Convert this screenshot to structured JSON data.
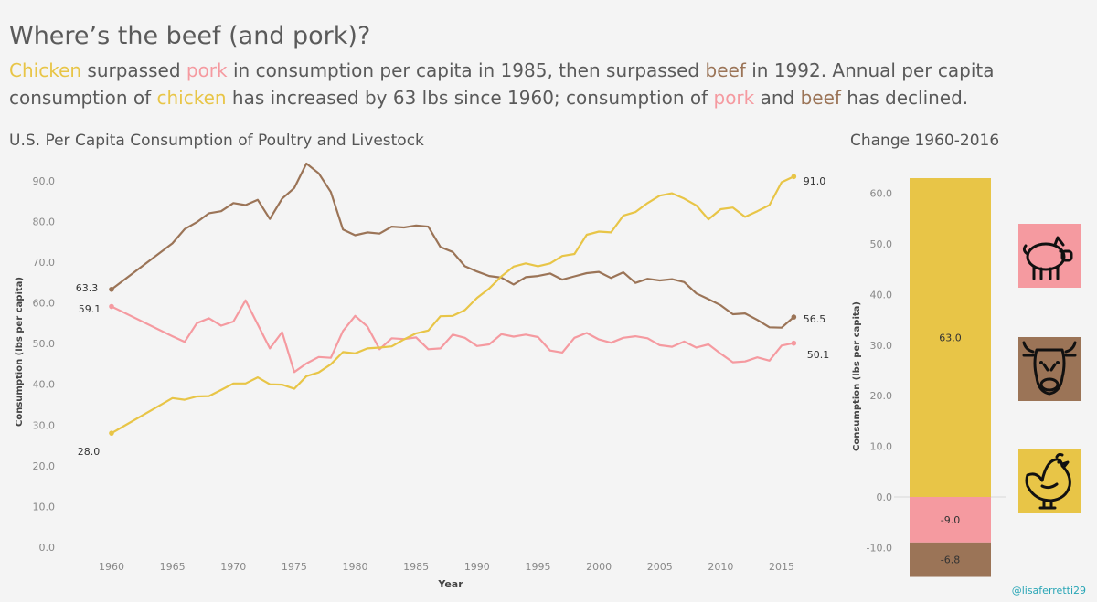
{
  "header": {
    "title": "Where’s the beef (and pork)?",
    "subtitle_parts": [
      {
        "text": "Chicken",
        "style": "chicken"
      },
      {
        "text": " surpassed ",
        "style": "plain"
      },
      {
        "text": "pork",
        "style": "pork"
      },
      {
        "text": " in consumption per capita in 1985, then surpassed ",
        "style": "plain"
      },
      {
        "text": "beef",
        "style": "beef"
      },
      {
        "text": " in 1992. Annual per capita consumption of ",
        "style": "plain"
      },
      {
        "text": "chicken",
        "style": "chicken"
      },
      {
        "text": " has increased by 63 lbs since 1960; consumption of ",
        "style": "plain"
      },
      {
        "text": "pork",
        "style": "pork"
      },
      {
        "text": " and ",
        "style": "plain"
      },
      {
        "text": "beef",
        "style": "beef"
      },
      {
        "text": " has declined.",
        "style": "plain"
      }
    ]
  },
  "credit": "@lisaferretti29",
  "colors": {
    "chicken": "#e8c547",
    "pork": "#f59aa0",
    "beef": "#9b7457"
  },
  "icons": [
    {
      "name": "pig-icon",
      "color": "#f59aa0"
    },
    {
      "name": "cow-icon",
      "color": "#9b7457"
    },
    {
      "name": "chicken-icon",
      "color": "#e8c547"
    }
  ],
  "chart_data": [
    {
      "type": "line",
      "title": "U.S. Per Capita Consumption of Poultry and Livestock",
      "xlabel": "Year",
      "ylabel": "Consumption (lbs per capita)",
      "xlim": [
        1957,
        2018
      ],
      "ylim": [
        0,
        96
      ],
      "x_ticks": [
        1960,
        1965,
        1970,
        1975,
        1980,
        1985,
        1990,
        1995,
        2000,
        2005,
        2010,
        2015
      ],
      "y_ticks": [
        0,
        10,
        20,
        30,
        40,
        50,
        60,
        70,
        80,
        90
      ],
      "y_tick_labels": [
        "0.0",
        "10.0",
        "20.0",
        "30.0",
        "40.0",
        "50.0",
        "60.0",
        "70.0",
        "80.0",
        "90.0"
      ],
      "grid": false,
      "series": [
        {
          "key": "beef",
          "color": "#9b7457",
          "points": [
            [
              1960,
              63.3
            ],
            [
              1965,
              74.6
            ],
            [
              1966,
              78.1
            ],
            [
              1967,
              79.8
            ],
            [
              1968,
              82.0
            ],
            [
              1969,
              82.5
            ],
            [
              1970,
              84.5
            ],
            [
              1971,
              84.0
            ],
            [
              1972,
              85.3
            ],
            [
              1973,
              80.6
            ],
            [
              1974,
              85.6
            ],
            [
              1975,
              88.2
            ],
            [
              1976,
              94.2
            ],
            [
              1977,
              91.8
            ],
            [
              1978,
              87.2
            ],
            [
              1979,
              78.0
            ],
            [
              1980,
              76.6
            ],
            [
              1981,
              77.3
            ],
            [
              1982,
              77.0
            ],
            [
              1983,
              78.7
            ],
            [
              1984,
              78.5
            ],
            [
              1985,
              79.0
            ],
            [
              1986,
              78.7
            ],
            [
              1987,
              73.7
            ],
            [
              1988,
              72.5
            ],
            [
              1989,
              69.0
            ],
            [
              1990,
              67.7
            ],
            [
              1991,
              66.6
            ],
            [
              1992,
              66.2
            ],
            [
              1993,
              64.5
            ],
            [
              1994,
              66.3
            ],
            [
              1995,
              66.6
            ],
            [
              1996,
              67.2
            ],
            [
              1997,
              65.7
            ],
            [
              1998,
              66.5
            ],
            [
              1999,
              67.3
            ],
            [
              2000,
              67.6
            ],
            [
              2001,
              66.1
            ],
            [
              2002,
              67.5
            ],
            [
              2003,
              64.9
            ],
            [
              2004,
              65.9
            ],
            [
              2005,
              65.5
            ],
            [
              2006,
              65.8
            ],
            [
              2007,
              65.1
            ],
            [
              2008,
              62.3
            ],
            [
              2009,
              60.9
            ],
            [
              2010,
              59.4
            ],
            [
              2011,
              57.2
            ],
            [
              2012,
              57.4
            ],
            [
              2013,
              55.8
            ],
            [
              2014,
              54.0
            ],
            [
              2015,
              53.9
            ],
            [
              2016,
              56.5
            ]
          ],
          "start_label": "63.3",
          "end_label": "56.5"
        },
        {
          "key": "pork",
          "color": "#f59aa0",
          "points": [
            [
              1960,
              59.1
            ],
            [
              1965,
              51.8
            ],
            [
              1966,
              50.4
            ],
            [
              1967,
              55.0
            ],
            [
              1968,
              56.2
            ],
            [
              1969,
              54.4
            ],
            [
              1970,
              55.4
            ],
            [
              1971,
              60.6
            ],
            [
              1972,
              54.7
            ],
            [
              1973,
              48.8
            ],
            [
              1974,
              52.8
            ],
            [
              1975,
              43.0
            ],
            [
              1976,
              45.1
            ],
            [
              1977,
              46.7
            ],
            [
              1978,
              46.5
            ],
            [
              1979,
              53.1
            ],
            [
              1980,
              56.8
            ],
            [
              1981,
              54.2
            ],
            [
              1982,
              48.6
            ],
            [
              1983,
              51.3
            ],
            [
              1984,
              51.1
            ],
            [
              1985,
              51.5
            ],
            [
              1986,
              48.6
            ],
            [
              1987,
              48.8
            ],
            [
              1988,
              52.2
            ],
            [
              1989,
              51.4
            ],
            [
              1990,
              49.4
            ],
            [
              1991,
              49.8
            ],
            [
              1992,
              52.3
            ],
            [
              1993,
              51.7
            ],
            [
              1994,
              52.2
            ],
            [
              1995,
              51.6
            ],
            [
              1996,
              48.3
            ],
            [
              1997,
              47.8
            ],
            [
              1998,
              51.4
            ],
            [
              1999,
              52.6
            ],
            [
              2000,
              51.0
            ],
            [
              2001,
              50.2
            ],
            [
              2002,
              51.4
            ],
            [
              2003,
              51.8
            ],
            [
              2004,
              51.3
            ],
            [
              2005,
              49.6
            ],
            [
              2006,
              49.2
            ],
            [
              2007,
              50.5
            ],
            [
              2008,
              49.0
            ],
            [
              2009,
              49.8
            ],
            [
              2010,
              47.5
            ],
            [
              2011,
              45.4
            ],
            [
              2012,
              45.6
            ],
            [
              2013,
              46.6
            ],
            [
              2014,
              45.8
            ],
            [
              2015,
              49.5
            ],
            [
              2016,
              50.1
            ]
          ],
          "start_label": "59.1",
          "end_label": "50.1"
        },
        {
          "key": "chicken",
          "color": "#e8c547",
          "points": [
            [
              1960,
              28.0
            ],
            [
              1965,
              36.6
            ],
            [
              1966,
              36.2
            ],
            [
              1967,
              37.0
            ],
            [
              1968,
              37.1
            ],
            [
              1969,
              38.6
            ],
            [
              1970,
              40.2
            ],
            [
              1971,
              40.2
            ],
            [
              1972,
              41.7
            ],
            [
              1973,
              40.0
            ],
            [
              1974,
              39.9
            ],
            [
              1975,
              38.9
            ],
            [
              1976,
              42.0
            ],
            [
              1977,
              42.9
            ],
            [
              1978,
              44.9
            ],
            [
              1979,
              47.9
            ],
            [
              1980,
              47.6
            ],
            [
              1981,
              48.8
            ],
            [
              1982,
              49.0
            ],
            [
              1983,
              49.3
            ],
            [
              1984,
              51.0
            ],
            [
              1985,
              52.5
            ],
            [
              1986,
              53.2
            ],
            [
              1987,
              56.7
            ],
            [
              1988,
              56.8
            ],
            [
              1989,
              58.2
            ],
            [
              1990,
              61.2
            ],
            [
              1991,
              63.5
            ],
            [
              1992,
              66.5
            ],
            [
              1993,
              68.9
            ],
            [
              1994,
              69.7
            ],
            [
              1995,
              69.0
            ],
            [
              1996,
              69.7
            ],
            [
              1997,
              71.5
            ],
            [
              1998,
              72.0
            ],
            [
              1999,
              76.7
            ],
            [
              2000,
              77.5
            ],
            [
              2001,
              77.3
            ],
            [
              2002,
              81.4
            ],
            [
              2003,
              82.3
            ],
            [
              2004,
              84.5
            ],
            [
              2005,
              86.3
            ],
            [
              2006,
              86.9
            ],
            [
              2007,
              85.6
            ],
            [
              2008,
              83.9
            ],
            [
              2009,
              80.5
            ],
            [
              2010,
              83.0
            ],
            [
              2011,
              83.4
            ],
            [
              2012,
              81.1
            ],
            [
              2013,
              82.5
            ],
            [
              2014,
              84.0
            ],
            [
              2015,
              89.6
            ],
            [
              2016,
              91.0
            ]
          ],
          "start_label": "28.0",
          "end_label": "91.0"
        }
      ]
    },
    {
      "type": "bar",
      "title": "Change 1960-2016",
      "ylabel": "Consumption (lbs per capita)",
      "ylim": [
        -15.5,
        64.5
      ],
      "y_ticks": [
        -10,
        0,
        10,
        20,
        30,
        40,
        50,
        60
      ],
      "y_tick_labels": [
        "-10.0",
        "0.0",
        "10.0",
        "20.0",
        "30.0",
        "40.0",
        "50.0",
        "60.0"
      ],
      "stacked": true,
      "segments": [
        {
          "key": "chicken",
          "value": 63.0,
          "base": 0,
          "label": "63.0",
          "color": "#e8c547"
        },
        {
          "key": "pork",
          "value": -9.0,
          "base": 0,
          "label": "-9.0",
          "color": "#f59aa0"
        },
        {
          "key": "beef",
          "value": -6.8,
          "base": -9.0,
          "label": "-6.8",
          "color": "#9b7457"
        }
      ]
    }
  ]
}
